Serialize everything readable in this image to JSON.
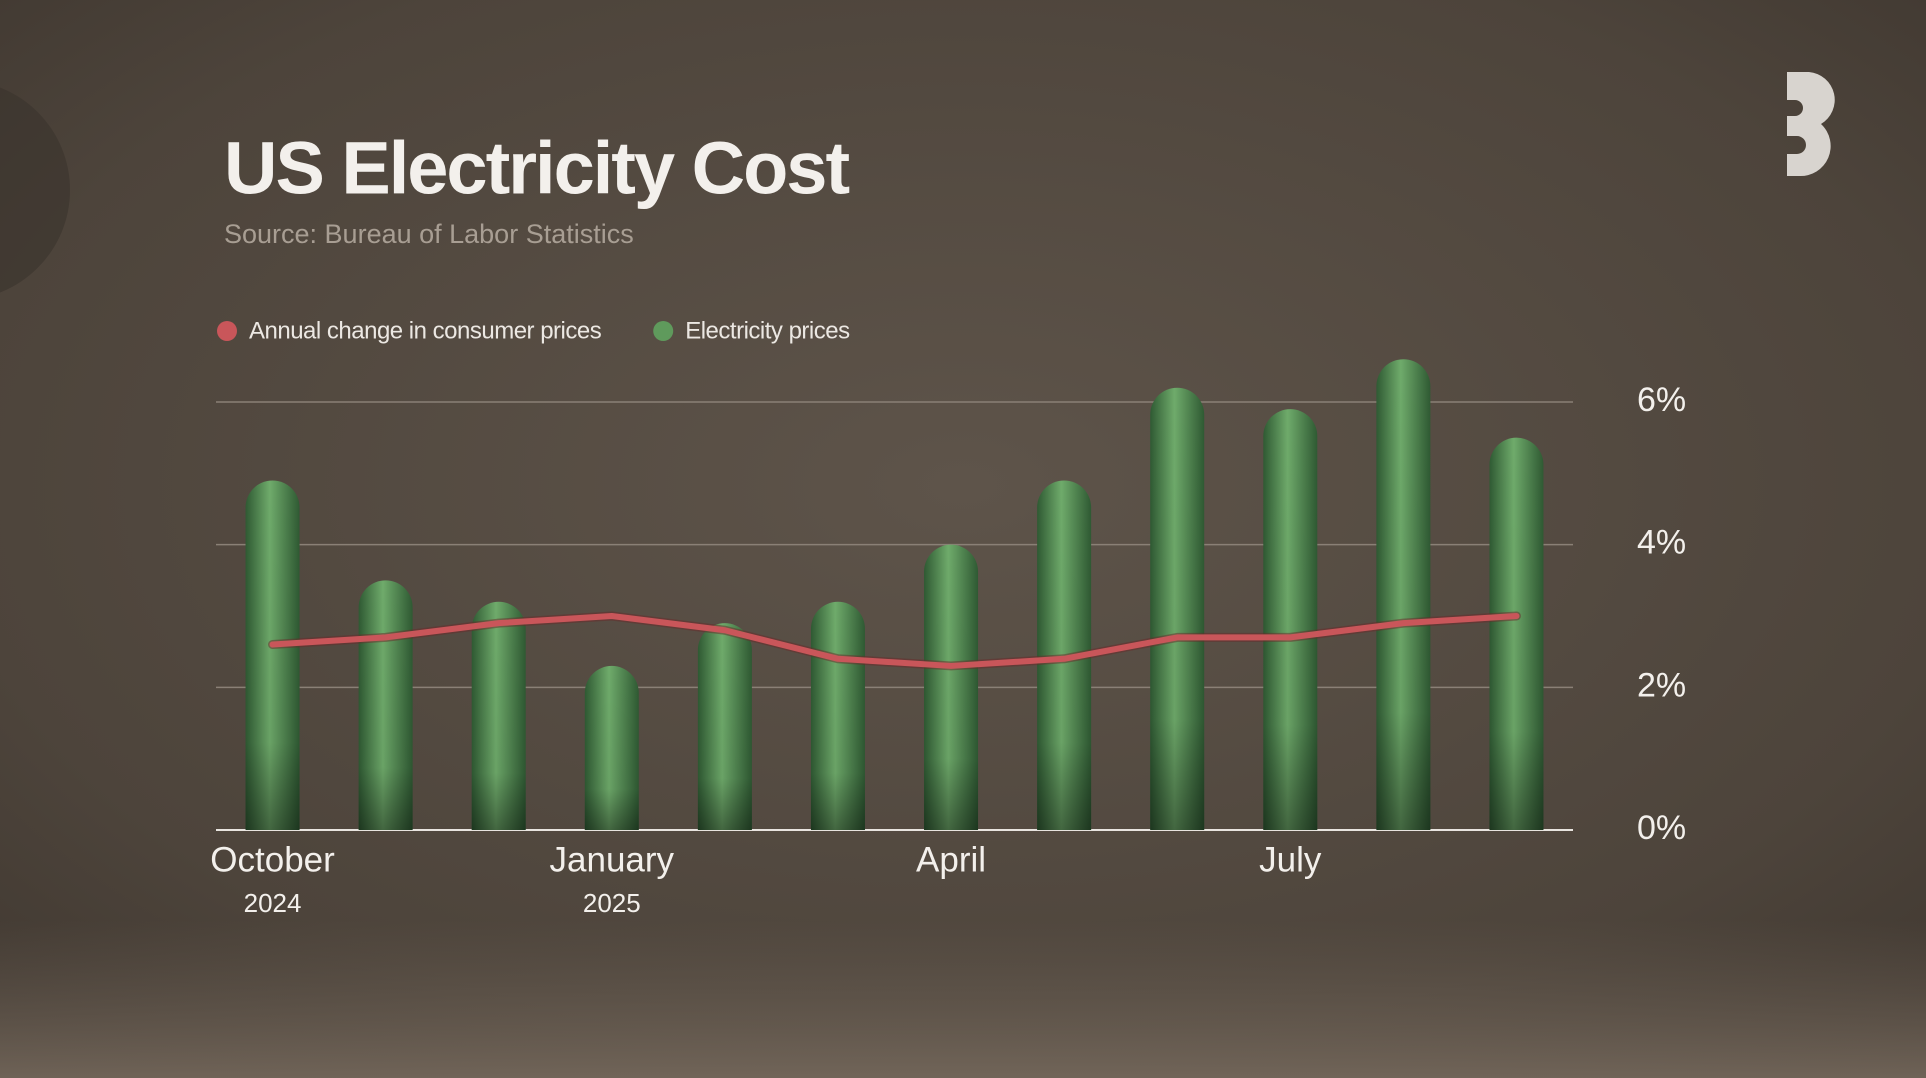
{
  "chart_data": {
    "type": "bar",
    "title": "US Electricity Cost",
    "subtitle": "Source: Bureau of Labor Statistics",
    "categories": [
      "October",
      null,
      null,
      "January",
      null,
      null,
      "April",
      null,
      null,
      "July",
      null,
      null
    ],
    "category_years": [
      "2024",
      null,
      null,
      "2025",
      null,
      null,
      null,
      null,
      null,
      null,
      null,
      null
    ],
    "series": [
      {
        "name": "Annual change in consumer prices",
        "type": "line",
        "color": "#c9565a",
        "values": [
          2.6,
          2.7,
          2.9,
          3.0,
          2.8,
          2.4,
          2.3,
          2.4,
          2.7,
          2.7,
          2.9,
          3.0
        ]
      },
      {
        "name": "Electricity prices",
        "type": "bar",
        "color": "#5f9a5c",
        "values": [
          4.9,
          3.5,
          3.2,
          2.3,
          2.9,
          3.2,
          4.0,
          4.9,
          6.2,
          5.9,
          6.6,
          5.5
        ]
      }
    ],
    "ylim": [
      0,
      6
    ],
    "yticks": [
      {
        "value": 0,
        "label": "0%"
      },
      {
        "value": 2,
        "label": "2%"
      },
      {
        "value": 4,
        "label": "4%"
      },
      {
        "value": 6,
        "label": "6%"
      }
    ],
    "grid": true,
    "legend": "top-left"
  }
}
